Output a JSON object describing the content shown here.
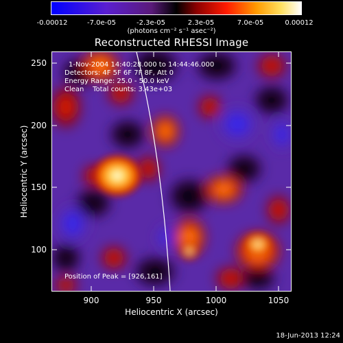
{
  "colorbar": {
    "tick_labels": [
      "-0.00012",
      "-7.0e-05",
      "-2.3e-05",
      "2.3e-05",
      "7.0e-05",
      "0.00012"
    ],
    "units": "(photons cm⁻² s⁻¹ asec⁻²)",
    "range": [
      -0.00012,
      0.00012
    ],
    "colors": [
      "#0000ff",
      "#8a2be2",
      "#ff0000",
      "#ff8c00",
      "#ffff99",
      "#ffffff"
    ]
  },
  "title": "Reconstructed RHESSI Image",
  "info": {
    "time_range": "1-Nov-2004 14:40:28.000 to 14:44:46.000",
    "detectors": "Detectors: 4F 5F 6F 7F 8F, Att 0",
    "energy": "Energy Range: 25.0 - 50.0 keV",
    "clean": "Clean    Total counts: 3.43e+03"
  },
  "peak_label": "Position of Peak = [926,161]",
  "peak_position": [
    926,
    161
  ],
  "x_axis": {
    "label": "Heliocentric X (arcsec)",
    "range": [
      868,
      1060
    ],
    "ticks": [
      900,
      950,
      1000,
      1050
    ],
    "tick_labels": [
      "900",
      "950",
      "1000",
      "1050"
    ]
  },
  "y_axis": {
    "label": "Heliocentric Y (arcsec)",
    "range": [
      67,
      260
    ],
    "ticks": [
      100,
      150,
      200,
      250
    ],
    "tick_labels": [
      "100",
      "150",
      "200",
      "250"
    ]
  },
  "footer": "18-Jun-2013 12:24"
}
